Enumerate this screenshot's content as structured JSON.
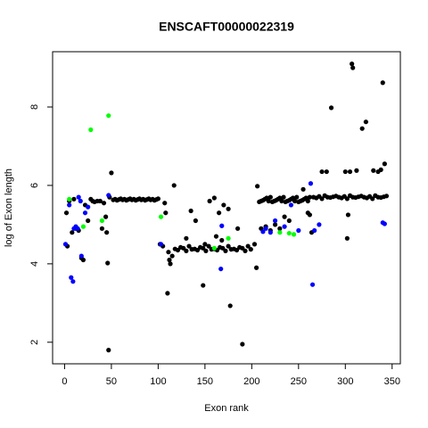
{
  "chart_data": {
    "type": "scatter",
    "title": "ENSCAFT00000022319",
    "x_label": "Exon rank",
    "y_label": "log of Exon length",
    "xlim": [
      -12.8,
      358.8
    ],
    "ylim": [
      1.45,
      9.41
    ],
    "xticks": [
      0,
      50,
      100,
      150,
      200,
      250,
      300,
      350
    ],
    "yticks": [
      2,
      4,
      6,
      8
    ],
    "series": [
      {
        "color": "#000000",
        "x": [
          2,
          3,
          5,
          8,
          10,
          12,
          15,
          18,
          20,
          22,
          25,
          28,
          30,
          32,
          35,
          38,
          40,
          42,
          44,
          45,
          46,
          47,
          48,
          50,
          52,
          54,
          56,
          58,
          60,
          62,
          64,
          66,
          68,
          70,
          72,
          74,
          76,
          78,
          80,
          82,
          84,
          86,
          88,
          90,
          92,
          94,
          96,
          98,
          100,
          102,
          105,
          107,
          108,
          110,
          111,
          112,
          113,
          115,
          117,
          130,
          135,
          140,
          148,
          150,
          155,
          160,
          162,
          165,
          168,
          170,
          175,
          177,
          185,
          190,
          203,
          205,
          206,
          118,
          121,
          124,
          127,
          130,
          133,
          136,
          139,
          142,
          145,
          148,
          151,
          154,
          157,
          160,
          163,
          166,
          169,
          172,
          175,
          178,
          181,
          184,
          187,
          190,
          193,
          196,
          199,
          208,
          210,
          212,
          214,
          216,
          218,
          220,
          222,
          224,
          226,
          228,
          230,
          232,
          234,
          236,
          238,
          240,
          242,
          244,
          246,
          248,
          250,
          252,
          254,
          256,
          258,
          260,
          262,
          210,
          215,
          220,
          225,
          230,
          235,
          240,
          255,
          260,
          262,
          264,
          275,
          280,
          285,
          300,
          302,
          303,
          305,
          307,
          308,
          312,
          318,
          322,
          330,
          335,
          338,
          340,
          342,
          266,
          269,
          272,
          275,
          278,
          281,
          284,
          287,
          290,
          293,
          296,
          299,
          302,
          305,
          308,
          311,
          314,
          317,
          320,
          323,
          326,
          329,
          332,
          335,
          338,
          341,
          344
        ],
        "values": [
          5.3,
          4.45,
          5.6,
          4.8,
          5.65,
          4.9,
          4.85,
          4.15,
          4.1,
          5.5,
          5.1,
          5.65,
          5.6,
          5.58,
          5.6,
          5.6,
          4.9,
          5.55,
          5.2,
          4.8,
          4.02,
          1.8,
          5.7,
          6.32,
          5.63,
          5.65,
          5.62,
          5.64,
          5.66,
          5.63,
          5.65,
          5.62,
          5.64,
          5.66,
          5.63,
          5.65,
          5.62,
          5.64,
          5.66,
          5.63,
          5.65,
          5.62,
          5.64,
          5.66,
          5.63,
          5.65,
          5.62,
          5.64,
          5.66,
          4.5,
          4.45,
          5.55,
          5.3,
          3.25,
          4.3,
          4.1,
          4.0,
          4.2,
          6.0,
          4.65,
          5.35,
          5.1,
          3.45,
          4.5,
          5.6,
          5.68,
          4.7,
          5.3,
          4.6,
          5.5,
          5.4,
          2.93,
          4.9,
          1.95,
          4.5,
          3.9,
          5.98,
          4.38,
          4.35,
          4.42,
          4.4,
          4.33,
          4.45,
          4.37,
          4.38,
          4.35,
          4.42,
          4.4,
          4.33,
          4.45,
          4.37,
          4.38,
          4.35,
          4.42,
          4.4,
          4.33,
          4.45,
          4.37,
          4.38,
          4.35,
          4.42,
          4.4,
          4.33,
          4.45,
          4.37,
          5.58,
          5.6,
          5.62,
          5.65,
          5.68,
          5.6,
          5.7,
          5.58,
          5.6,
          5.62,
          5.65,
          5.68,
          5.6,
          5.7,
          5.58,
          5.6,
          5.62,
          5.65,
          5.68,
          5.6,
          5.7,
          5.58,
          5.6,
          5.62,
          5.65,
          5.68,
          5.6,
          5.7,
          4.9,
          4.95,
          4.85,
          5.0,
          4.9,
          5.2,
          5.1,
          5.9,
          5.3,
          5.25,
          4.8,
          6.35,
          6.35,
          7.98,
          6.35,
          4.65,
          5.25,
          6.35,
          9.1,
          9.0,
          6.38,
          7.45,
          7.62,
          6.38,
          6.35,
          6.4,
          8.62,
          6.55,
          5.7,
          5.68,
          5.72,
          5.66,
          5.74,
          5.7,
          5.69,
          5.71,
          5.73,
          5.7,
          5.68,
          5.72,
          5.66,
          5.74,
          5.7,
          5.69,
          5.71,
          5.73,
          5.7,
          5.68,
          5.72,
          5.66,
          5.74,
          5.7,
          5.69,
          5.71,
          5.73
        ]
      },
      {
        "color": "#0000ff",
        "x": [
          1,
          5,
          7,
          9,
          10,
          12,
          14,
          15,
          17,
          18,
          22,
          25,
          47,
          103,
          167,
          168,
          212,
          215,
          220,
          225,
          235,
          242,
          250,
          263,
          265,
          267,
          272,
          340,
          342
        ],
        "values": [
          4.5,
          5.5,
          3.65,
          3.55,
          4.9,
          4.95,
          4.9,
          5.7,
          5.6,
          4.2,
          5.3,
          5.45,
          5.75,
          4.5,
          3.87,
          4.97,
          4.82,
          4.9,
          4.8,
          5.1,
          4.95,
          5.5,
          4.85,
          6.05,
          3.47,
          4.85,
          5.0,
          5.05,
          5.02
        ]
      },
      {
        "color": "#00ff00",
        "x": [
          5,
          20,
          28,
          40,
          47,
          103,
          160,
          175,
          230,
          240,
          245
        ],
        "values": [
          5.65,
          4.95,
          7.42,
          5.1,
          7.78,
          5.2,
          4.4,
          4.65,
          4.8,
          4.78,
          4.75
        ]
      }
    ]
  }
}
